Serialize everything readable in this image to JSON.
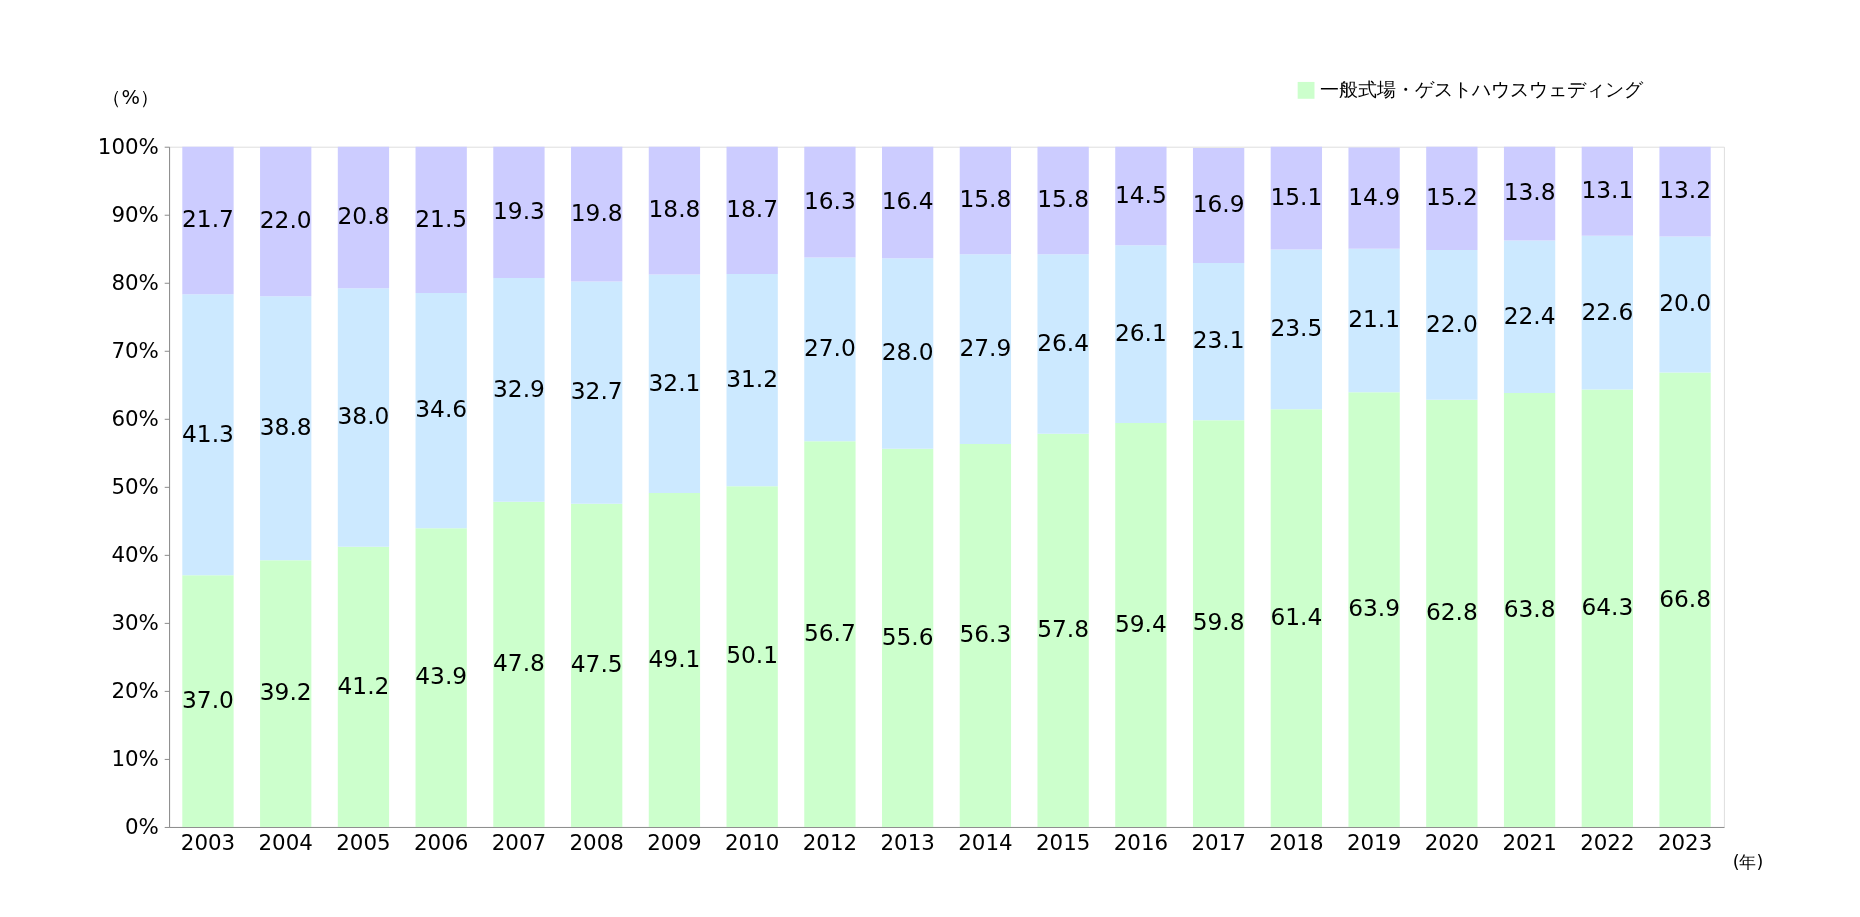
{
  "chart_data": {
    "type": "bar",
    "stacked": true,
    "ylabel": "（%）",
    "xlabel": "(年)",
    "categories": [
      "2003",
      "2004",
      "2005",
      "2006",
      "2007",
      "2008",
      "2009",
      "2010",
      "2012",
      "2013",
      "2014",
      "2015",
      "2016",
      "2017",
      "2018",
      "2019",
      "2020",
      "2021",
      "2022",
      "2023"
    ],
    "series": [
      {
        "name": "一般式場・ゲストハウスウェディング",
        "color": "#ccffcc",
        "values": [
          37.0,
          39.2,
          41.2,
          43.9,
          47.8,
          47.5,
          49.1,
          50.1,
          56.7,
          55.6,
          56.3,
          57.8,
          59.4,
          59.8,
          61.4,
          63.9,
          62.8,
          63.8,
          64.3,
          66.8
        ],
        "value_labels": [
          "37.0",
          "39.2",
          "41.2",
          "43.9",
          "47.8",
          "47.5",
          "49.1",
          "50.1",
          "56.7",
          "55.6",
          "56.3",
          "57.8",
          "59.4",
          "59.8",
          "61.4",
          "63.9",
          "62.8",
          "63.8",
          "64.3",
          "66.8"
        ]
      },
      {
        "color": "#cce9ff",
        "values": [
          41.3,
          38.8,
          38.0,
          34.6,
          32.9,
          32.7,
          32.1,
          31.2,
          27.0,
          28.0,
          27.9,
          26.4,
          26.1,
          23.1,
          23.5,
          21.1,
          22.0,
          22.4,
          22.6,
          20.0
        ],
        "value_labels": [
          "41.3",
          "38.8",
          "38.0",
          "34.6",
          "32.9",
          "32.7",
          "32.1",
          "31.2",
          "27.0",
          "28.0",
          "27.9",
          "26.4",
          "26.1",
          "23.1",
          "23.5",
          "21.1",
          "22.0",
          "22.4",
          "22.6",
          "20.0"
        ]
      },
      {
        "color": "#ccccff",
        "values": [
          21.7,
          22.0,
          20.8,
          21.5,
          19.3,
          19.8,
          18.8,
          18.7,
          16.3,
          16.4,
          15.8,
          15.8,
          14.5,
          16.9,
          15.1,
          14.9,
          15.2,
          13.8,
          13.1,
          13.2
        ],
        "value_labels": [
          "21.7",
          "22.0",
          "20.8",
          "21.5",
          "19.3",
          "19.8",
          "18.8",
          "18.7",
          "16.3",
          "16.4",
          "15.8",
          "15.8",
          "14.5",
          "16.9",
          "15.1",
          "14.9",
          "15.2",
          "13.8",
          "13.1",
          "13.2"
        ]
      }
    ],
    "ylim": [
      0,
      100
    ],
    "yticks": [
      {
        "value": 0,
        "label": "0%"
      },
      {
        "value": 10,
        "label": "10%"
      },
      {
        "value": 20,
        "label": "20%"
      },
      {
        "value": 30,
        "label": "30%"
      },
      {
        "value": 40,
        "label": "40%"
      },
      {
        "value": 50,
        "label": "50%"
      },
      {
        "value": 60,
        "label": "60%"
      },
      {
        "value": 70,
        "label": "70%"
      },
      {
        "value": 80,
        "label": "80%"
      },
      {
        "value": 90,
        "label": "90%"
      },
      {
        "value": 100,
        "label": "100%"
      }
    ],
    "grid": false,
    "legend": "top right"
  }
}
